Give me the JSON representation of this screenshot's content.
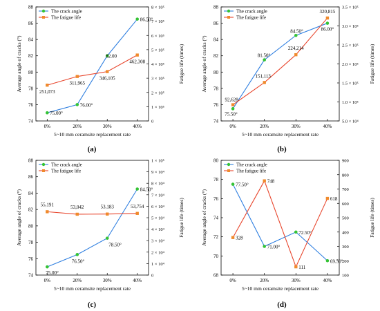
{
  "colors": {
    "crack": "#2f7fe0",
    "fatigue": "#e8452c",
    "crack_marker": "#35c335",
    "fatigue_marker": "#f08a2c",
    "axis": "#000000"
  },
  "chart_data": [
    {
      "panel": "(a)",
      "type": "line",
      "categories": [
        "0%",
        "20%",
        "30%",
        "40%"
      ],
      "xlabel": "5~10 mm ceramsite replacement rate",
      "ylabel": "Average angle of cracks (°)",
      "ylabel_right": "Fatigue life (times)",
      "ylim": [
        74,
        88
      ],
      "yticks": [
        "74",
        "76",
        "78",
        "80",
        "82",
        "84",
        "86",
        "88"
      ],
      "ylim_right": [
        0,
        800000
      ],
      "yticks_right": [
        "0",
        "1 × 10⁵",
        "2 × 10⁵",
        "3 × 10⁵",
        "4 × 10⁵",
        "5 × 10⁵",
        "6 × 10⁵",
        "7 × 10⁵",
        "8 × 10⁵"
      ],
      "legend": "top-left",
      "series": [
        {
          "name": "The crack angle",
          "axis": "left",
          "values": [
            75.0,
            76.0,
            82.0,
            86.5
          ],
          "labels": [
            "75.00°",
            "76.00°",
            "82.00",
            "86.50°"
          ]
        },
        {
          "name": "The fatigue life",
          "axis": "right",
          "values": [
            251073,
            311965,
            346105,
            462308
          ],
          "labels": [
            "251,073",
            "311,965",
            "346,105",
            "462,308"
          ]
        }
      ]
    },
    {
      "panel": "(b)",
      "type": "line",
      "categories": [
        "0%",
        "20%",
        "30%",
        "40%"
      ],
      "xlabel": "5~10 mm ceramsite replacement rate",
      "ylabel": "Average angle of cracks (°)",
      "ylabel_right": "Fatigue life (times)",
      "ylim": [
        74,
        88
      ],
      "yticks": [
        "74",
        "76",
        "78",
        "80",
        "82",
        "84",
        "86",
        "88"
      ],
      "ylim_right": [
        50000,
        350000
      ],
      "yticks_right": [
        "5.0 × 10⁴",
        "1.0 × 10⁵",
        "1.5 × 10⁵",
        "2.0 × 10⁵",
        "2.5 × 10⁵",
        "3.0 × 10⁵",
        "3.5 × 10⁵"
      ],
      "legend": "top-left",
      "series": [
        {
          "name": "The crack angle",
          "axis": "left",
          "values": [
            75.5,
            81.5,
            84.5,
            86.0
          ],
          "labels": [
            "75.50°",
            "81.50°",
            "84.50°",
            "86.00°"
          ]
        },
        {
          "name": "The fatigue life",
          "axis": "right",
          "values": [
            92628,
            151113,
            224214,
            320815
          ],
          "labels": [
            "92,628",
            "151,113",
            "224,214",
            "320,815"
          ]
        }
      ]
    },
    {
      "panel": "(c)",
      "type": "line",
      "categories": [
        "0%",
        "20%",
        "30%",
        "40%"
      ],
      "xlabel": "5~10 mm ceramsite replacement rate",
      "ylabel": "Average angle of cracks (°)",
      "ylabel_right": "Fatigue life (times)",
      "ylim": [
        74,
        88
      ],
      "yticks": [
        "74",
        "76",
        "78",
        "80",
        "82",
        "84",
        "86",
        "88"
      ],
      "ylim_right": [
        0,
        100000
      ],
      "yticks_right": [
        "0",
        "1 × 10⁴",
        "2 × 10⁴",
        "3 × 10⁴",
        "4 × 10⁴",
        "5 × 10⁴",
        "6 × 10⁴",
        "7 × 10⁴",
        "8 × 10⁴",
        "9 × 10⁴",
        "1 × 10⁵"
      ],
      "legend": "top-left",
      "series": [
        {
          "name": "The crack angle",
          "axis": "left",
          "values": [
            75.0,
            76.5,
            78.5,
            84.5
          ],
          "labels": [
            "75.00°",
            "76.50°",
            "78.50°",
            "84.50°"
          ]
        },
        {
          "name": "The fatigue life",
          "axis": "right",
          "values": [
            55191,
            53042,
            53183,
            53754
          ],
          "labels": [
            "55,191",
            "53,042",
            "53,183",
            "53,754"
          ]
        }
      ]
    },
    {
      "panel": "(d)",
      "type": "line",
      "categories": [
        "0%",
        "20%",
        "30%",
        "40%"
      ],
      "xlabel": "5~10 mm ceramsite replacement rate",
      "ylabel": "Average angle of cracks (°)",
      "ylabel_right": "Fatigue life (times)",
      "ylim": [
        68,
        80
      ],
      "yticks": [
        "68",
        "70",
        "72",
        "74",
        "76",
        "78",
        "80"
      ],
      "ylim_right": [
        50,
        900
      ],
      "yticks_right": [
        "100",
        "200",
        "300",
        "400",
        "500",
        "600",
        "700",
        "800",
        "900"
      ],
      "legend": "top-left",
      "series": [
        {
          "name": "The crack angle",
          "axis": "left",
          "values": [
            77.5,
            71.0,
            72.5,
            69.5
          ],
          "labels": [
            "77.50°",
            "71.00°",
            "72.50°",
            "69.50°"
          ]
        },
        {
          "name": "The fatigue life",
          "axis": "right",
          "values": [
            328,
            748,
            111,
            618
          ],
          "labels": [
            "328",
            "748",
            "111",
            "618"
          ]
        }
      ]
    }
  ]
}
